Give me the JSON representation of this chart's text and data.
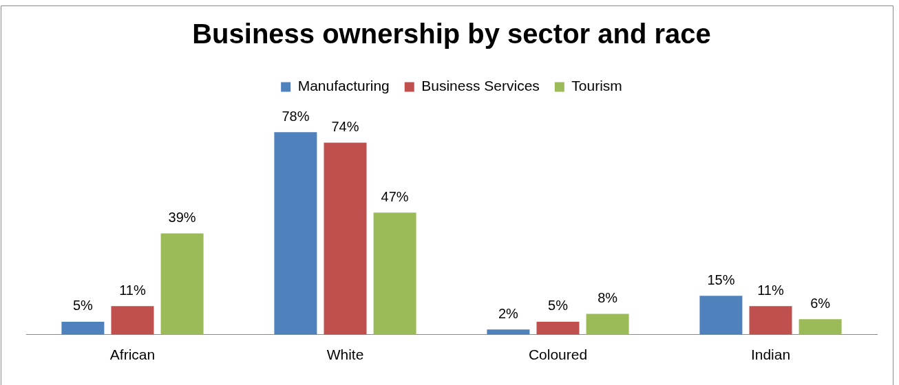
{
  "chart_data": {
    "type": "bar",
    "title": "Business ownership by sector and race",
    "categories": [
      "African",
      "White",
      "Coloured",
      "Indian"
    ],
    "legend": "top",
    "series": [
      {
        "name": "Manufacturing",
        "color": "#4f81bd",
        "values": [
          5,
          78,
          2,
          15
        ],
        "value_labels": [
          "5%",
          "78%",
          "2%",
          "15%"
        ]
      },
      {
        "name": "Business Services",
        "color": "#c0504d",
        "values": [
          11,
          74,
          5,
          11
        ],
        "value_labels": [
          "11%",
          "74%",
          "5%",
          "11%"
        ]
      },
      {
        "name": "Tourism",
        "color": "#9bbb59",
        "values": [
          39,
          47,
          8,
          6
        ],
        "value_labels": [
          "39%",
          "47%",
          "8%",
          "6%"
        ]
      }
    ]
  }
}
